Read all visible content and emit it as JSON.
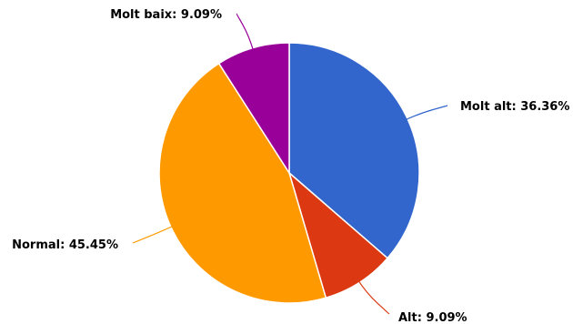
{
  "chart_data": {
    "type": "pie",
    "start_angle_deg": 0,
    "direction": "clockwise",
    "slices": [
      {
        "label": "Molt alt",
        "value": 36.36,
        "display": "Molt alt: 36.36%",
        "color": "#3366CC"
      },
      {
        "label": "Alt",
        "value": 9.09,
        "display": "Alt: 9.09%",
        "color": "#DC3912"
      },
      {
        "label": "Normal",
        "value": 45.45,
        "display": "Normal: 45.45%",
        "color": "#FF9900"
      },
      {
        "label": "Molt baix",
        "value": 9.09,
        "display": "Molt baix: 9.09%",
        "color": "#990099"
      }
    ]
  }
}
